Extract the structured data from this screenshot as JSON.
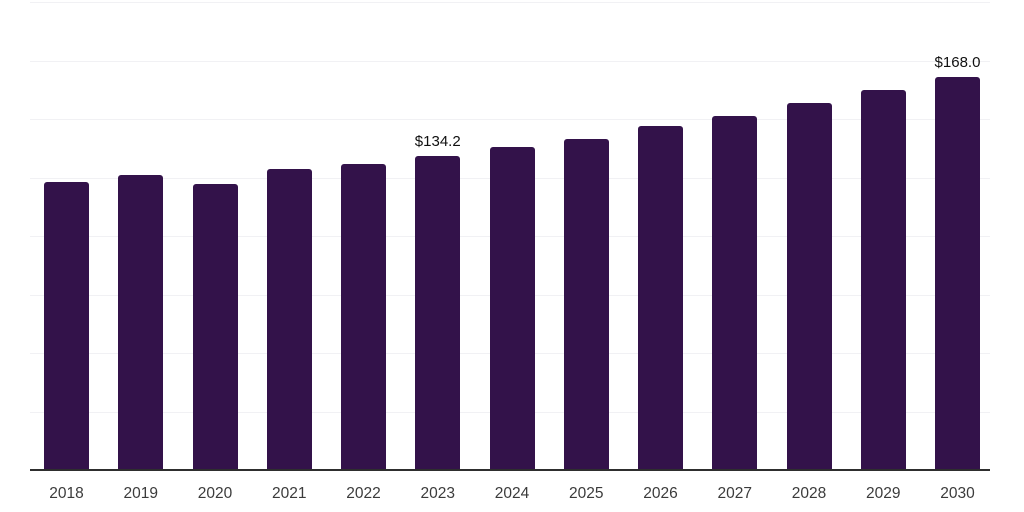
{
  "chart_data": {
    "type": "bar",
    "title": "",
    "xlabel": "",
    "ylabel": "",
    "categories": [
      "2018",
      "2019",
      "2020",
      "2021",
      "2022",
      "2023",
      "2024",
      "2025",
      "2026",
      "2027",
      "2028",
      "2029",
      "2030"
    ],
    "values": [
      123.0,
      125.9,
      122.3,
      128.7,
      130.8,
      134.2,
      137.9,
      141.5,
      147.0,
      151.2,
      156.7,
      162.4,
      168.0
    ],
    "annotations": [
      {
        "category": "2023",
        "label": "$134.2"
      },
      {
        "category": "2030",
        "label": "$168.0"
      }
    ],
    "ylim": [
      0,
      200
    ],
    "gridline_step": 25,
    "grid": true,
    "legend": "none",
    "colors": {
      "bar": "#33124a",
      "gridline": "#f1f1f4",
      "axis_line": "#2e2e2e",
      "tick_label": "#3b3b3b",
      "data_label": "#101010",
      "background": "#ffffff"
    }
  }
}
